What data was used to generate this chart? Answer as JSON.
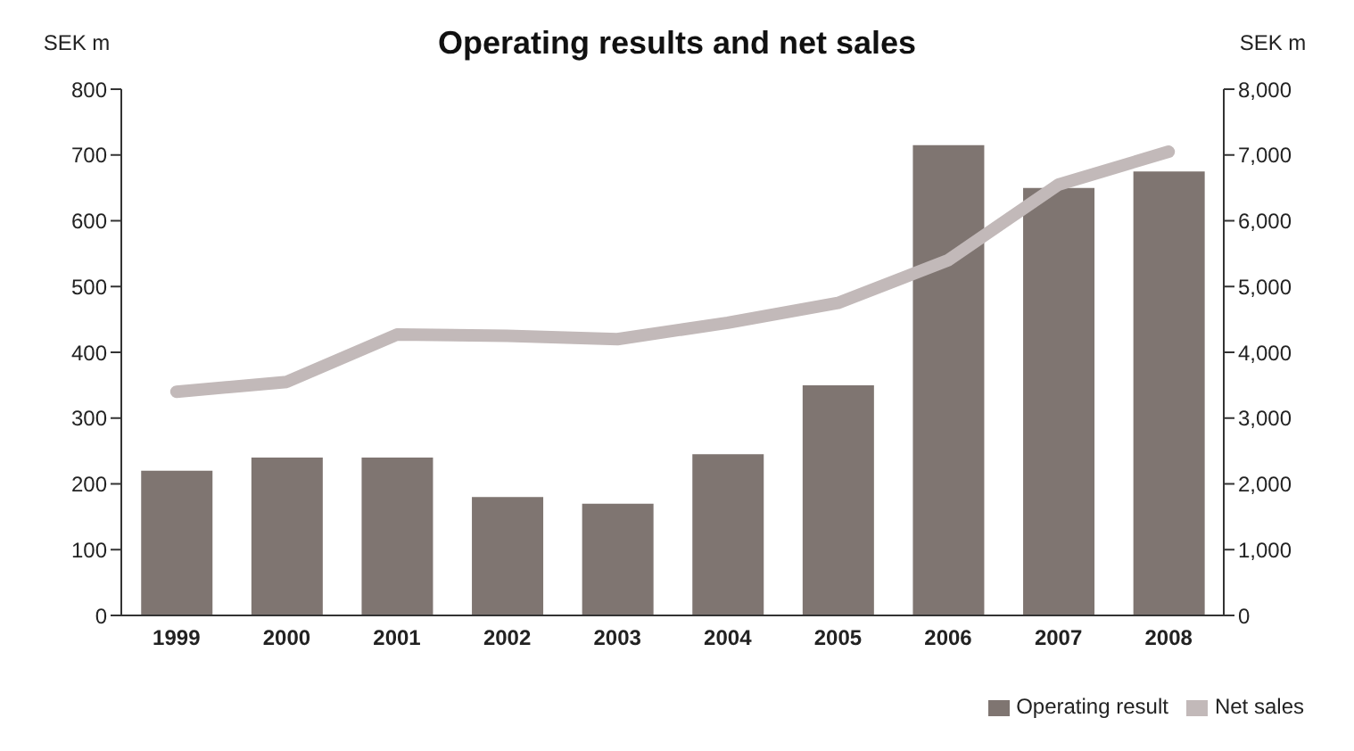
{
  "chart_data": {
    "type": "bar",
    "title": "Operating results and net sales",
    "ylabel": "SEK m",
    "y2label": "SEK m",
    "categories": [
      "1999",
      "2000",
      "2001",
      "2002",
      "2003",
      "2004",
      "2005",
      "2006",
      "2007",
      "2008"
    ],
    "series": [
      {
        "name": "Operating result",
        "color": "#7f7571",
        "values": [
          220,
          240,
          240,
          180,
          170,
          245,
          350,
          715,
          650,
          675
        ]
      },
      {
        "name": "Net sales",
        "type": "line",
        "axis": "y2",
        "color": "#c2b9b9",
        "values": [
          3400,
          3550,
          4270,
          4250,
          4200,
          4450,
          4750,
          5400,
          6550,
          7050
        ]
      }
    ],
    "ylim": [
      0,
      800
    ],
    "yticks": [
      0,
      100,
      200,
      300,
      400,
      500,
      600,
      700,
      800
    ],
    "y2lim": [
      0,
      8000
    ],
    "y2ticks": [
      0,
      {
        "value": 1000,
        "label": "1,000"
      },
      {
        "value": 2000,
        "label": "2,000"
      },
      {
        "value": 3000,
        "label": "3,000"
      },
      {
        "value": 4000,
        "label": "4,000"
      },
      {
        "value": 5000,
        "label": "5,000"
      },
      {
        "value": 6000,
        "label": "6,000"
      },
      {
        "value": 7000,
        "label": "7,000"
      },
      {
        "value": 8000,
        "label": "8,000"
      }
    ],
    "grid": false,
    "legend": "bottom right",
    "marker": "none",
    "line_style": "solid"
  }
}
